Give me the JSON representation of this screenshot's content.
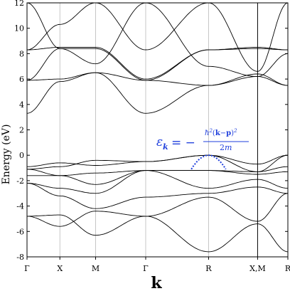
{
  "chart_data": {
    "type": "line",
    "title": "",
    "xlabel": "k",
    "ylabel": "Energy (eV)",
    "ylim": [
      -8,
      12
    ],
    "y_ticks": [
      -8,
      -6,
      -4,
      -2,
      0,
      2,
      4,
      6,
      8,
      10,
      12
    ],
    "x_ticks": [
      {
        "label": "Γ",
        "pos": 0.0
      },
      {
        "label": "X",
        "pos": 0.126
      },
      {
        "label": "M",
        "pos": 0.263
      },
      {
        "label": "Γ",
        "pos": 0.455
      },
      {
        "label": "R",
        "pos": 0.696
      },
      {
        "label": "X,M",
        "pos": 0.884
      },
      {
        "label": "R",
        "pos": 1.0
      }
    ],
    "segments": [
      {
        "from": 0.0,
        "to": 0.126
      },
      {
        "from": 0.126,
        "to": 0.263
      },
      {
        "from": 0.263,
        "to": 0.455
      },
      {
        "from": 0.455,
        "to": 0.696
      },
      {
        "from": 0.696,
        "to": 0.884
      },
      {
        "from": 0.884,
        "to": 1.0
      }
    ],
    "grid": "vertical at high-symmetry points",
    "series": [
      {
        "id": "b1",
        "values": [
          [
            0,
            -4.8
          ],
          [
            0.126,
            -4.7
          ],
          [
            0.263,
            -6.3
          ],
          [
            0.455,
            -4.8
          ],
          [
            0.696,
            -7.6
          ],
          [
            0.884,
            -5.4
          ],
          [
            1.0,
            -7.6
          ]
        ]
      },
      {
        "id": "b2",
        "values": [
          [
            0,
            -4.8
          ],
          [
            0.126,
            -5.6
          ],
          [
            0.263,
            -4.4
          ],
          [
            0.455,
            -4.8
          ],
          [
            0.696,
            -3.3
          ],
          [
            0.884,
            -5.2
          ],
          [
            1.0,
            -3.0
          ]
        ]
      },
      {
        "id": "b3",
        "values": [
          [
            0,
            -2.2
          ],
          [
            0.126,
            -3.2
          ],
          [
            0.263,
            -4.2
          ],
          [
            0.455,
            -3.3
          ],
          [
            0.696,
            -3.0
          ],
          [
            0.884,
            -2.5
          ],
          [
            1.0,
            -3.0
          ]
        ]
      },
      {
        "id": "b4",
        "values": [
          [
            0,
            -2.2
          ],
          [
            0.126,
            -2.6
          ],
          [
            0.263,
            -3.0
          ],
          [
            0.455,
            -1.2
          ],
          [
            0.696,
            -2.6
          ],
          [
            0.884,
            -1.9
          ],
          [
            1.0,
            -2.6
          ]
        ]
      },
      {
        "id": "b5",
        "values": [
          [
            0,
            -1.6
          ],
          [
            0.126,
            -1.6
          ],
          [
            0.263,
            -2.3
          ],
          [
            0.455,
            -1.2
          ],
          [
            0.696,
            -1.2
          ],
          [
            0.884,
            -1.5
          ],
          [
            1.0,
            -1.3
          ]
        ]
      },
      {
        "id": "b6",
        "values": [
          [
            0,
            -1.1
          ],
          [
            0.126,
            -1.6
          ],
          [
            0.263,
            -1.4
          ],
          [
            0.455,
            -1.2
          ],
          [
            0.696,
            -1.2
          ],
          [
            0.884,
            -1.3
          ],
          [
            1.0,
            -0.9
          ]
        ]
      },
      {
        "id": "b7",
        "values": [
          [
            0,
            -1.1
          ],
          [
            0.126,
            -0.9
          ],
          [
            0.263,
            -0.4
          ],
          [
            0.455,
            -0.5
          ],
          [
            0.696,
            0.0
          ],
          [
            0.884,
            -1.3
          ],
          [
            1.0,
            0.0
          ]
        ]
      },
      {
        "id": "b8",
        "values": [
          [
            0,
            -0.9
          ],
          [
            0.126,
            -0.6
          ],
          [
            0.263,
            -0.8
          ],
          [
            0.455,
            -0.5
          ],
          [
            0.696,
            0.0
          ],
          [
            0.884,
            -0.7
          ],
          [
            1.0,
            0.0
          ]
        ]
      },
      {
        "id": "b9",
        "values": [
          [
            0,
            3.3
          ],
          [
            0.126,
            5.8
          ],
          [
            0.263,
            6.5
          ],
          [
            0.455,
            3.3
          ],
          [
            0.696,
            5.5
          ],
          [
            0.884,
            6.2
          ],
          [
            1.0,
            5.5
          ]
        ]
      },
      {
        "id": "b10",
        "values": [
          [
            0,
            5.9
          ],
          [
            0.126,
            6.0
          ],
          [
            0.263,
            6.5
          ],
          [
            0.455,
            5.9
          ],
          [
            0.696,
            5.5
          ],
          [
            0.884,
            6.4
          ],
          [
            1.0,
            5.5
          ]
        ]
      },
      {
        "id": "b11",
        "values": [
          [
            0,
            5.9
          ],
          [
            0.126,
            8.4
          ],
          [
            0.263,
            8.4
          ],
          [
            0.455,
            5.9
          ],
          [
            0.696,
            8.3
          ],
          [
            0.884,
            8.4
          ],
          [
            1.0,
            8.3
          ]
        ]
      },
      {
        "id": "b12",
        "values": [
          [
            0,
            8.3
          ],
          [
            0.126,
            8.5
          ],
          [
            0.263,
            8.5
          ],
          [
            0.455,
            6.0
          ],
          [
            0.696,
            8.3
          ],
          [
            0.884,
            8.5
          ],
          [
            1.0,
            8.3
          ]
        ]
      },
      {
        "id": "b13",
        "values": [
          [
            0,
            8.3
          ],
          [
            0.126,
            10.3
          ],
          [
            0.263,
            12.0
          ],
          [
            0.455,
            8.3
          ],
          [
            0.696,
            12.0
          ],
          [
            0.884,
            6.6
          ],
          [
            1.0,
            12.0
          ]
        ]
      },
      {
        "id": "b14",
        "values": [
          [
            0,
            12.0
          ],
          [
            0.126,
            8.4
          ],
          [
            0.263,
            7.2
          ],
          [
            0.455,
            12.0
          ],
          [
            0.696,
            7.0
          ],
          [
            0.884,
            6.2
          ],
          [
            1.0,
            8.0
          ]
        ]
      }
    ],
    "fit_curve": {
      "style": "dotted",
      "color": "#1f3fdc",
      "x_range": [
        0.63,
        0.762
      ],
      "peak": [
        0.696,
        0.0
      ],
      "depth": -1.1
    },
    "annotation": {
      "label": "ε_k = −ħ²(k−p)²/2m",
      "color": "#1f3fdc"
    }
  }
}
